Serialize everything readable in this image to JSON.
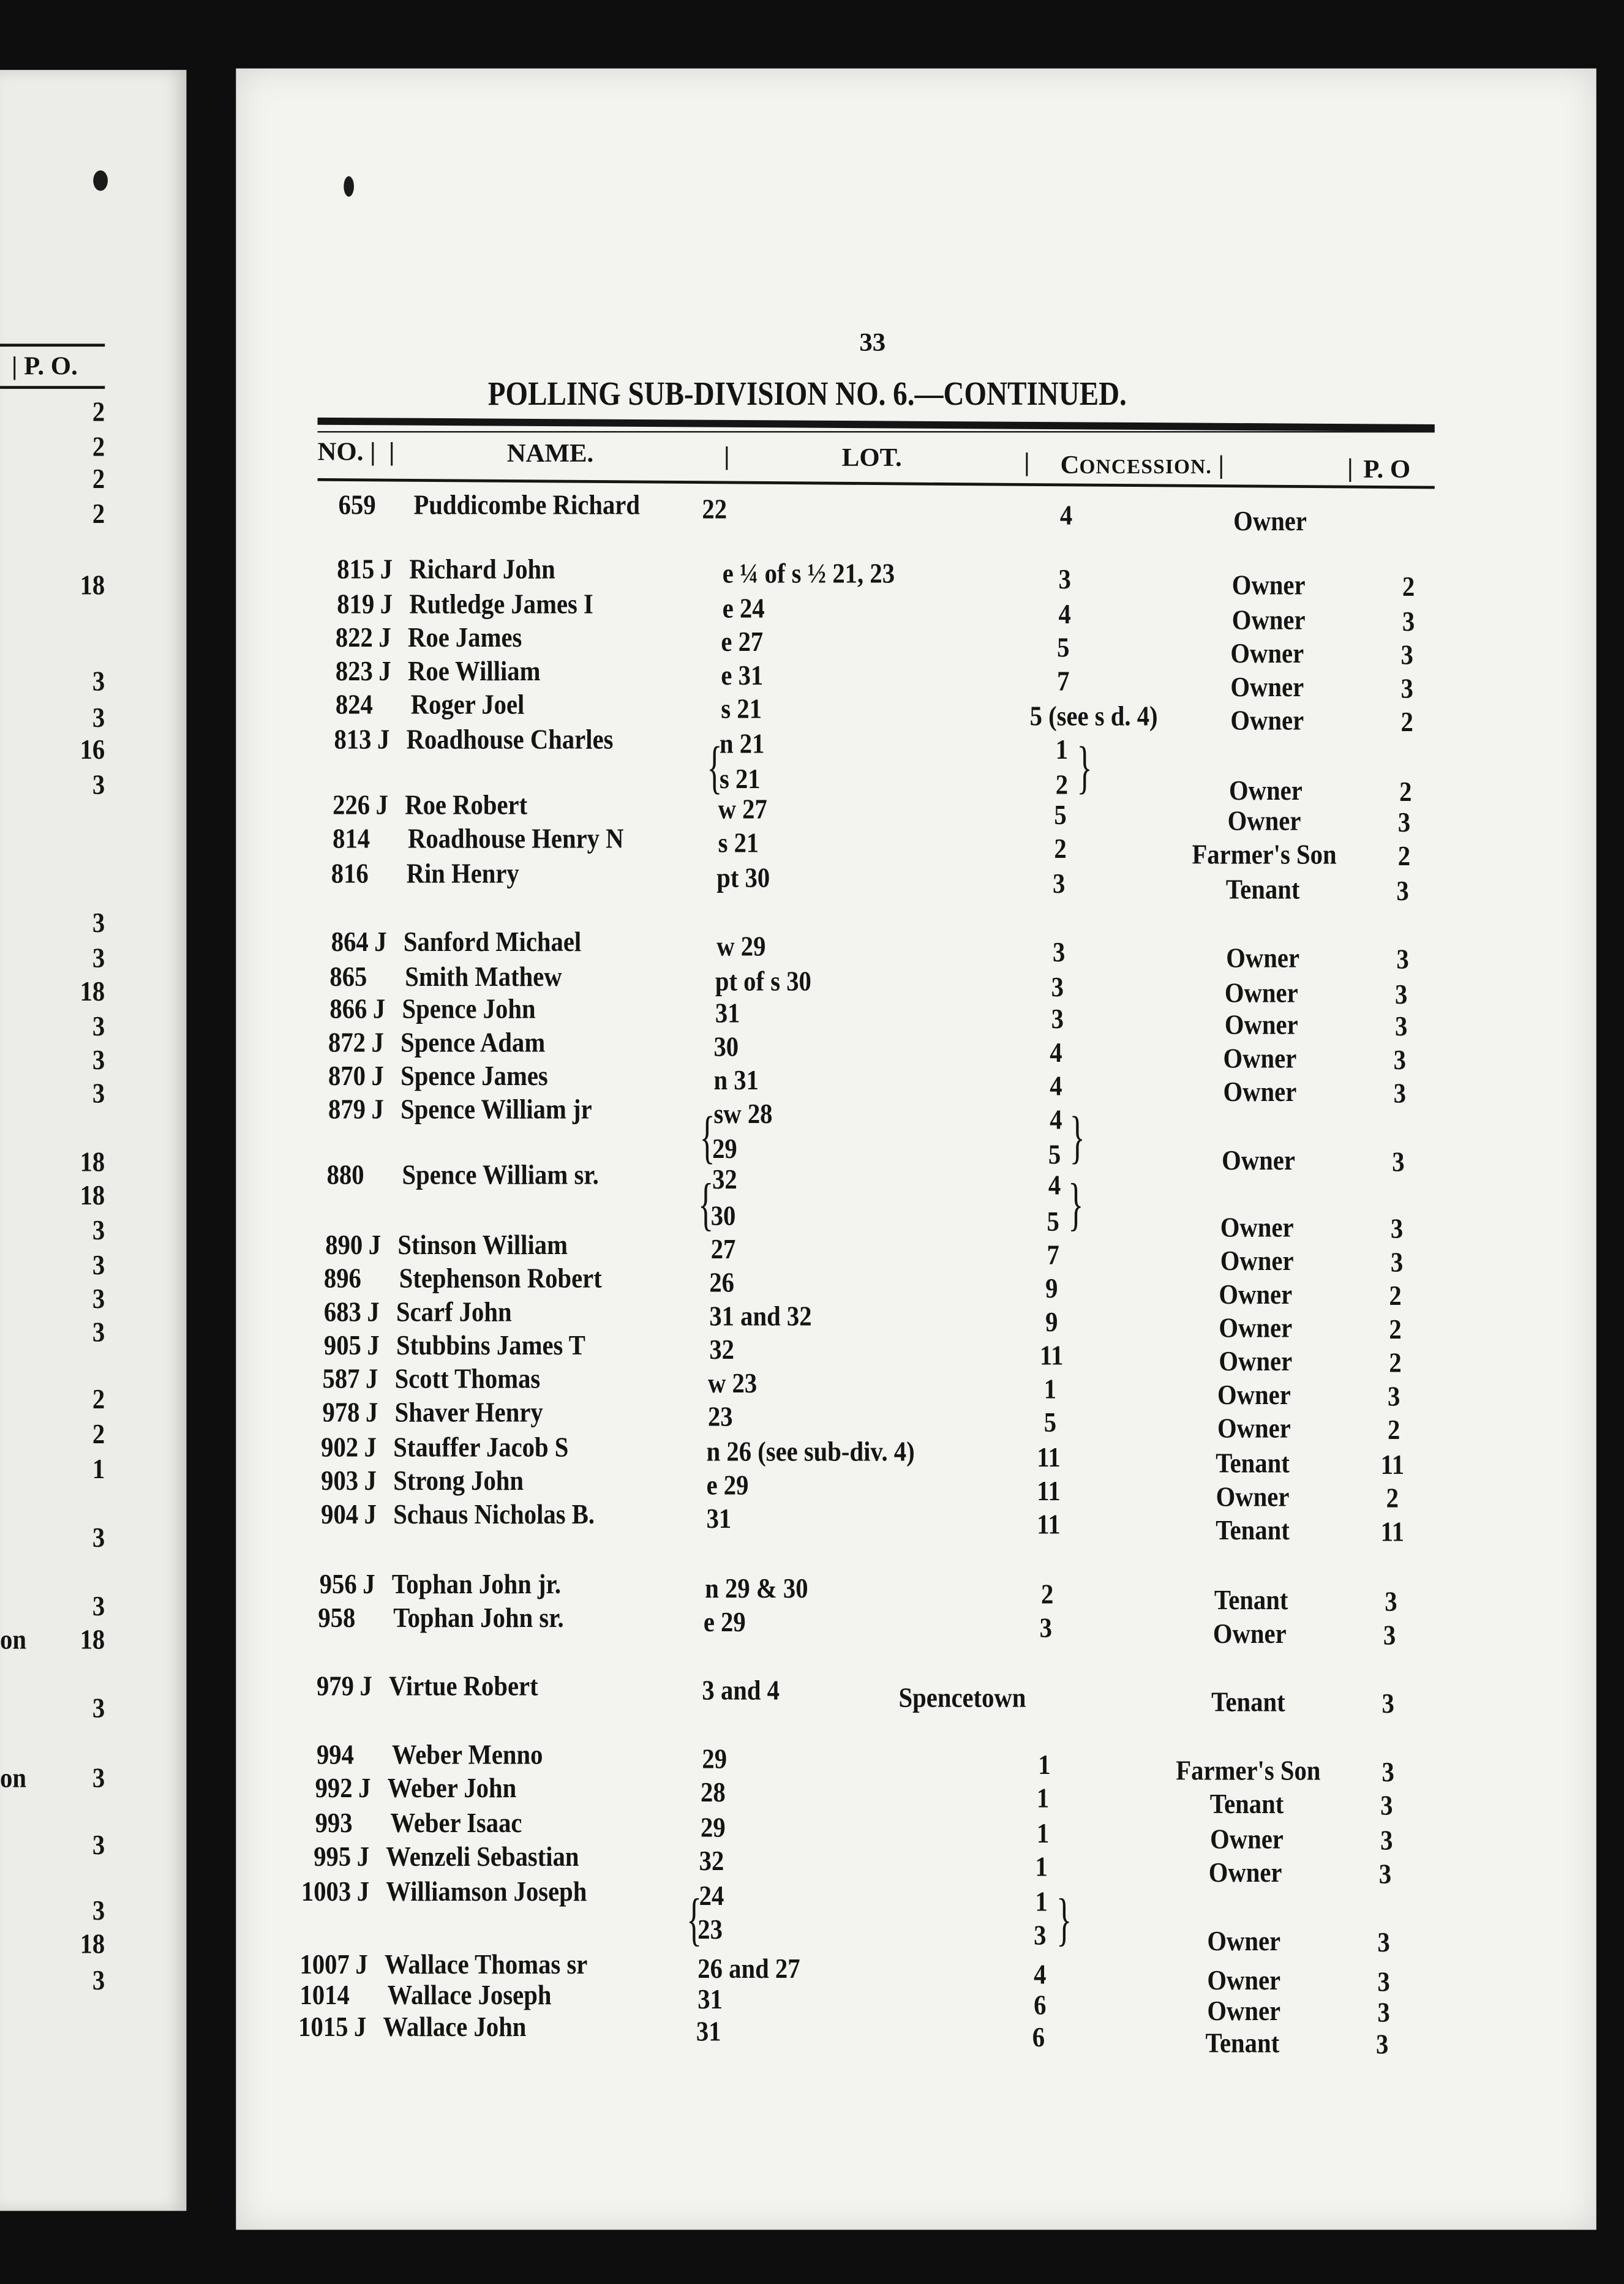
{
  "page_number": "33",
  "title": "POLLING SUB-DIVISION NO. 6.—CONTINUED.",
  "columns": {
    "no": "NO.",
    "name": "NAME.",
    "lot": "LOT.",
    "concession_first": "C",
    "concession_rest": "ONCESSION.",
    "po": "P. O"
  },
  "left_page": {
    "header": "| P. O.",
    "fragments": [
      "on",
      "on"
    ],
    "values": [
      "2",
      "2",
      "2",
      "2",
      "18",
      "3",
      "3",
      "16",
      "3",
      "3",
      "3",
      "18",
      "3",
      "3",
      "3",
      "18",
      "18",
      "3",
      "3",
      "3",
      "3",
      "2",
      "2",
      "1",
      "3",
      "3",
      "18",
      "3",
      "3",
      "3",
      "3",
      "18",
      "3"
    ]
  },
  "rows": [
    {
      "no": "659",
      "j": "",
      "name": "Puddicombe Richard",
      "lot": "22",
      "conc": "4",
      "status": "Owner",
      "po": ""
    },
    {
      "no": "815",
      "j": "J",
      "name": "Richard John",
      "lot": "e ¼ of s ½ 21, 23",
      "conc": "3",
      "status": "Owner",
      "po": "2"
    },
    {
      "no": "819",
      "j": "J",
      "name": "Rutledge James I",
      "lot": "e 24",
      "conc": "4",
      "status": "Owner",
      "po": "3"
    },
    {
      "no": "822",
      "j": "J",
      "name": "Roe James",
      "lot": "e 27",
      "conc": "5",
      "status": "Owner",
      "po": "3"
    },
    {
      "no": "823",
      "j": "J",
      "name": "Roe William",
      "lot": "e 31",
      "conc": "7",
      "status": "Owner",
      "po": "3"
    },
    {
      "no": "824",
      "j": "",
      "name": "Roger Joel",
      "lot": "s 21",
      "conc": "5 (see s d. 4)",
      "status": "Owner",
      "po": "2"
    },
    {
      "no": "813",
      "j": "J",
      "name": "Roadhouse Charles",
      "lot": "n 21",
      "conc": "1",
      "status": "",
      "po": ""
    },
    {
      "no": "",
      "j": "",
      "name": "",
      "lot": "s 21",
      "conc": "2",
      "status": "Owner",
      "po": "2"
    },
    {
      "no": "226",
      "j": "J",
      "name": "Roe Robert",
      "lot": "w 27",
      "conc": "5",
      "status": "Owner",
      "po": "3"
    },
    {
      "no": "814",
      "j": "",
      "name": "Roadhouse Henry N",
      "lot": "s 21",
      "conc": "2",
      "status": "Farmer's Son",
      "po": "2"
    },
    {
      "no": "816",
      "j": "",
      "name": "Rin Henry",
      "lot": "pt 30",
      "conc": "3",
      "status": "Tenant",
      "po": "3"
    },
    {
      "no": "864",
      "j": "J",
      "name": "Sanford Michael",
      "lot": "w 29",
      "conc": "3",
      "status": "Owner",
      "po": "3"
    },
    {
      "no": "865",
      "j": "",
      "name": "Smith Mathew",
      "lot": "pt of s 30",
      "conc": "3",
      "status": "Owner",
      "po": "3"
    },
    {
      "no": "866",
      "j": "J",
      "name": "Spence John",
      "lot": "31",
      "conc": "3",
      "status": "Owner",
      "po": "3"
    },
    {
      "no": "872",
      "j": "J",
      "name": "Spence Adam",
      "lot": "30",
      "conc": "4",
      "status": "Owner",
      "po": "3"
    },
    {
      "no": "870",
      "j": "J",
      "name": "Spence James",
      "lot": "n 31",
      "conc": "4",
      "status": "Owner",
      "po": "3"
    },
    {
      "no": "879",
      "j": "J",
      "name": "Spence William jr",
      "lot": "sw 28",
      "conc": "4",
      "status": "",
      "po": ""
    },
    {
      "no": "",
      "j": "",
      "name": "",
      "lot": "29",
      "conc": "5",
      "status": "Owner",
      "po": "3"
    },
    {
      "no": "880",
      "j": "",
      "name": "Spence William sr.",
      "lot": "32",
      "conc": "4",
      "status": "",
      "po": ""
    },
    {
      "no": "",
      "j": "",
      "name": "",
      "lot": "30",
      "conc": "5",
      "status": "Owner",
      "po": "3"
    },
    {
      "no": "890",
      "j": "J",
      "name": "Stinson William",
      "lot": "27",
      "conc": "7",
      "status": "Owner",
      "po": "3"
    },
    {
      "no": "896",
      "j": "",
      "name": "Stephenson Robert",
      "lot": "26",
      "conc": "9",
      "status": "Owner",
      "po": "2"
    },
    {
      "no": "683",
      "j": "J",
      "name": "Scarf John",
      "lot": "31 and 32",
      "conc": "9",
      "status": "Owner",
      "po": "2"
    },
    {
      "no": "905",
      "j": "J",
      "name": "Stubbins James T",
      "lot": "32",
      "conc": "11",
      "status": "Owner",
      "po": "2"
    },
    {
      "no": "587",
      "j": "J",
      "name": "Scott Thomas",
      "lot": "w 23",
      "conc": "1",
      "status": "Owner",
      "po": "3"
    },
    {
      "no": "978",
      "j": "J",
      "name": "Shaver Henry",
      "lot": "23",
      "conc": "5",
      "status": "Owner",
      "po": "2"
    },
    {
      "no": "902",
      "j": "J",
      "name": "Stauffer Jacob S",
      "lot": "n 26 (see sub-div. 4)",
      "conc": "11",
      "status": "Tenant",
      "po": "11"
    },
    {
      "no": "903",
      "j": "J",
      "name": "Strong John",
      "lot": "e 29",
      "conc": "11",
      "status": "Owner",
      "po": "2"
    },
    {
      "no": "904",
      "j": "J",
      "name": "Schaus Nicholas B.",
      "lot": "31",
      "conc": "11",
      "status": "Tenant",
      "po": "11"
    },
    {
      "no": "956",
      "j": "J",
      "name": "Tophan John jr.",
      "lot": "n 29 & 30",
      "conc": "2",
      "status": "Tenant",
      "po": "3"
    },
    {
      "no": "958",
      "j": "",
      "name": "Tophan John sr.",
      "lot": "e 29",
      "conc": "3",
      "status": "Owner",
      "po": "3"
    },
    {
      "no": "979",
      "j": "J",
      "name": "Virtue Robert",
      "lot": "3 and 4",
      "conc": "Spencetown",
      "status": "Tenant",
      "po": "3"
    },
    {
      "no": "994",
      "j": "",
      "name": "Weber Menno",
      "lot": "29",
      "conc": "1",
      "status": "Farmer's Son",
      "po": "3"
    },
    {
      "no": "992",
      "j": "J",
      "name": "Weber John",
      "lot": "28",
      "conc": "1",
      "status": "Tenant",
      "po": "3"
    },
    {
      "no": "993",
      "j": "",
      "name": "Weber Isaac",
      "lot": "29",
      "conc": "1",
      "status": "Owner",
      "po": "3"
    },
    {
      "no": "995",
      "j": "J",
      "name": "Wenzeli Sebastian",
      "lot": "32",
      "conc": "1",
      "status": "Owner",
      "po": "3"
    },
    {
      "no": "1003",
      "j": "J",
      "name": "Williamson Joseph",
      "lot": "24",
      "conc": "1",
      "status": "",
      "po": ""
    },
    {
      "no": "",
      "j": "",
      "name": "",
      "lot": "23",
      "conc": "3",
      "status": "Owner",
      "po": "3"
    },
    {
      "no": "1007",
      "j": "J",
      "name": "Wallace Thomas sr",
      "lot": "26 and 27",
      "conc": "4",
      "status": "Owner",
      "po": "3"
    },
    {
      "no": "1014",
      "j": "",
      "name": "Wallace Joseph",
      "lot": "31",
      "conc": "6",
      "status": "Owner",
      "po": "3"
    },
    {
      "no": "1015",
      "j": "J",
      "name": "Wallace John",
      "lot": "31",
      "conc": "6",
      "status": "Tenant",
      "po": "3"
    }
  ]
}
